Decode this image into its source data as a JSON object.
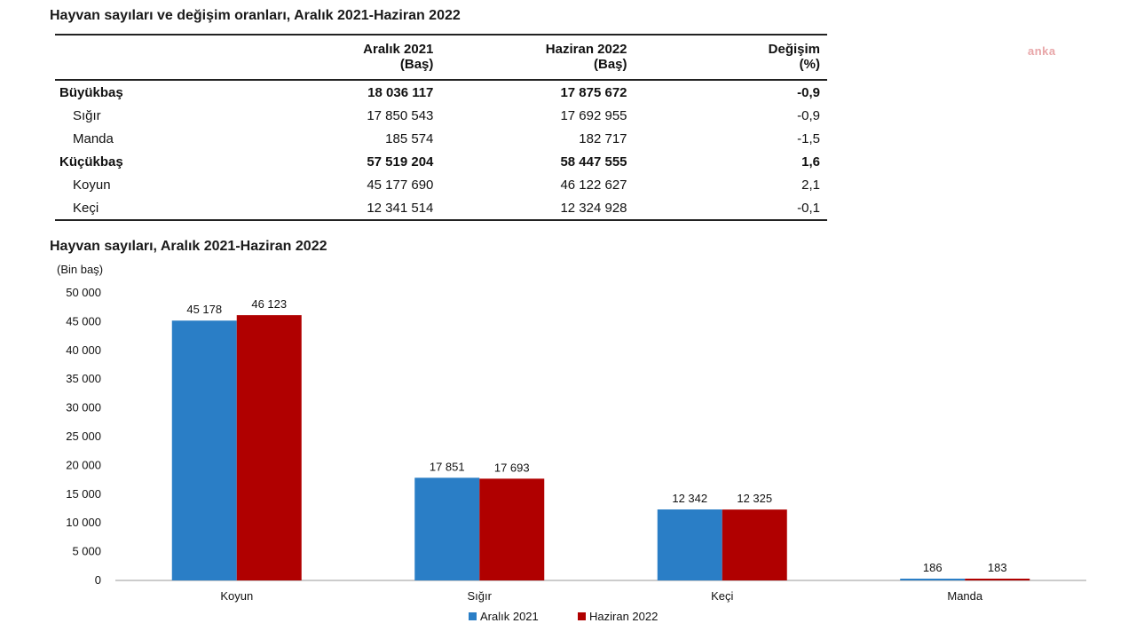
{
  "watermark": "anka",
  "table": {
    "title": "Hayvan sayıları ve değişim oranları, Aralık 2021-Haziran 2022",
    "headers": [
      {
        "line1": "",
        "line2": ""
      },
      {
        "line1": "Aralık 2021",
        "line2": "(Baş)"
      },
      {
        "line1": "Haziran 2022",
        "line2": "(Baş)"
      },
      {
        "line1": "Değişim",
        "line2": "(%)"
      }
    ],
    "rows": [
      {
        "name": "Büyükbaş",
        "v2021": "18 036 117",
        "v2022": "17 875 672",
        "change": "-0,9",
        "bold": true
      },
      {
        "name": "Sığır",
        "v2021": "17 850 543",
        "v2022": "17 692 955",
        "change": "-0,9",
        "bold": false
      },
      {
        "name": "Manda",
        "v2021": "185 574",
        "v2022": "182 717",
        "change": "-1,5",
        "bold": false
      },
      {
        "name": "Küçükbaş",
        "v2021": "57 519 204",
        "v2022": "58 447 555",
        "change": "1,6",
        "bold": true
      },
      {
        "name": "Koyun",
        "v2021": "45 177 690",
        "v2022": "46 122 627",
        "change": "2,1",
        "bold": false
      },
      {
        "name": "Keçi",
        "v2021": "12 341 514",
        "v2022": "12 324 928",
        "change": "-0,1",
        "bold": false
      }
    ]
  },
  "chart_data": {
    "type": "bar",
    "title": "Hayvan sayıları, Aralık 2021-Haziran 2022",
    "ylabel": "(Bin baş)",
    "categories": [
      "Koyun",
      "Sığır",
      "Keçi",
      "Manda"
    ],
    "series": [
      {
        "name": "Aralık 2021",
        "values": [
          45178,
          17851,
          12342,
          186
        ],
        "labels": [
          "45 178",
          "17 851",
          "12 342",
          "186"
        ],
        "color": "#2a7ec6"
      },
      {
        "name": "Haziran 2022",
        "values": [
          46123,
          17693,
          12325,
          183
        ],
        "labels": [
          "46 123",
          "17 693",
          "12 325",
          "183"
        ],
        "color": "#b00000"
      }
    ],
    "ylim": [
      0,
      50000
    ],
    "yticks": [
      0,
      5000,
      10000,
      15000,
      20000,
      25000,
      30000,
      35000,
      40000,
      45000,
      50000
    ],
    "ytick_labels": [
      "0",
      "5 000",
      "10 000",
      "15 000",
      "20 000",
      "25 000",
      "30 000",
      "35 000",
      "40 000",
      "45 000",
      "50 000"
    ],
    "grid": false,
    "legend": "bottom"
  }
}
